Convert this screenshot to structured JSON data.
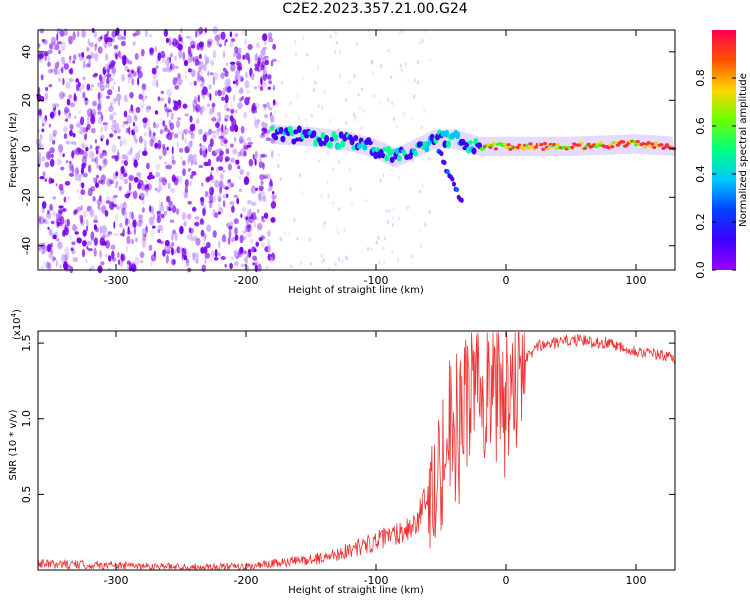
{
  "title": "C2E2.2023.357.21.00.G24",
  "colors": {
    "snr_line": "#ee3333",
    "scatter": "#7a00ee",
    "colorbar": [
      "#9a00ff",
      "#3f00ff",
      "#0040ff",
      "#00c8ff",
      "#00ff80",
      "#6aff00",
      "#ffd700",
      "#ff5000",
      "#ff0050"
    ]
  },
  "chart_data": [
    {
      "type": "heatmap",
      "title": "C2E2.2023.357.21.00.G24",
      "xlabel": "Height of straight line (km)",
      "ylabel": "Frequency (Hz)",
      "xlim": [
        -360,
        130
      ],
      "ylim": [
        -50,
        49
      ],
      "xticks": [
        -300,
        -200,
        -100,
        0,
        100
      ],
      "yticks": [
        -40,
        -20,
        0,
        20,
        40
      ],
      "colorbar": {
        "label": "Normalized spectral amplitude",
        "range": [
          0.0,
          1.0
        ],
        "ticks": [
          0.0,
          0.2,
          0.4,
          0.6,
          0.8
        ]
      },
      "features": {
        "noise_region_x": [
          -360,
          -178
        ],
        "main_track": [
          {
            "x": -180,
            "y": 6
          },
          {
            "x": -150,
            "y": 5
          },
          {
            "x": -120,
            "y": 3
          },
          {
            "x": -100,
            "y": 0
          },
          {
            "x": -85,
            "y": -4
          },
          {
            "x": -70,
            "y": 0
          },
          {
            "x": -55,
            "y": 4
          },
          {
            "x": -40,
            "y": 4
          },
          {
            "x": -20,
            "y": 1
          },
          {
            "x": 0,
            "y": 1
          },
          {
            "x": 50,
            "y": 1
          },
          {
            "x": 100,
            "y": 2
          },
          {
            "x": 130,
            "y": 1
          }
        ],
        "branch_track": [
          {
            "x": -52,
            "y": 0
          },
          {
            "x": -45,
            "y": -10
          },
          {
            "x": -38,
            "y": -17
          },
          {
            "x": -33,
            "y": -22
          }
        ]
      }
    },
    {
      "type": "line",
      "xlabel": "Height of straight line (km)",
      "ylabel": "SNR (10 * v/v)",
      "yscale_label": "(x10",
      "yscale_exp": "4",
      "yscale_close": ")",
      "xlim": [
        -360,
        130
      ],
      "ylim": [
        0,
        1.58
      ],
      "xticks": [
        -300,
        -200,
        -100,
        0,
        100
      ],
      "yticks": [
        0.5,
        1.0,
        1.5
      ],
      "envelope": [
        {
          "x": -360,
          "y": 0.04
        },
        {
          "x": -300,
          "y": 0.03
        },
        {
          "x": -250,
          "y": 0.02
        },
        {
          "x": -200,
          "y": 0.02
        },
        {
          "x": -170,
          "y": 0.05
        },
        {
          "x": -140,
          "y": 0.08
        },
        {
          "x": -110,
          "y": 0.16
        },
        {
          "x": -90,
          "y": 0.22
        },
        {
          "x": -70,
          "y": 0.3
        },
        {
          "x": -55,
          "y": 0.55
        },
        {
          "x": -45,
          "y": 0.85
        },
        {
          "x": -30,
          "y": 1.1
        },
        {
          "x": -15,
          "y": 1.2
        },
        {
          "x": 0,
          "y": 1.25
        },
        {
          "x": 10,
          "y": 1.35
        },
        {
          "x": 25,
          "y": 1.48
        },
        {
          "x": 50,
          "y": 1.52
        },
        {
          "x": 80,
          "y": 1.5
        },
        {
          "x": 100,
          "y": 1.45
        },
        {
          "x": 130,
          "y": 1.4
        }
      ]
    }
  ]
}
